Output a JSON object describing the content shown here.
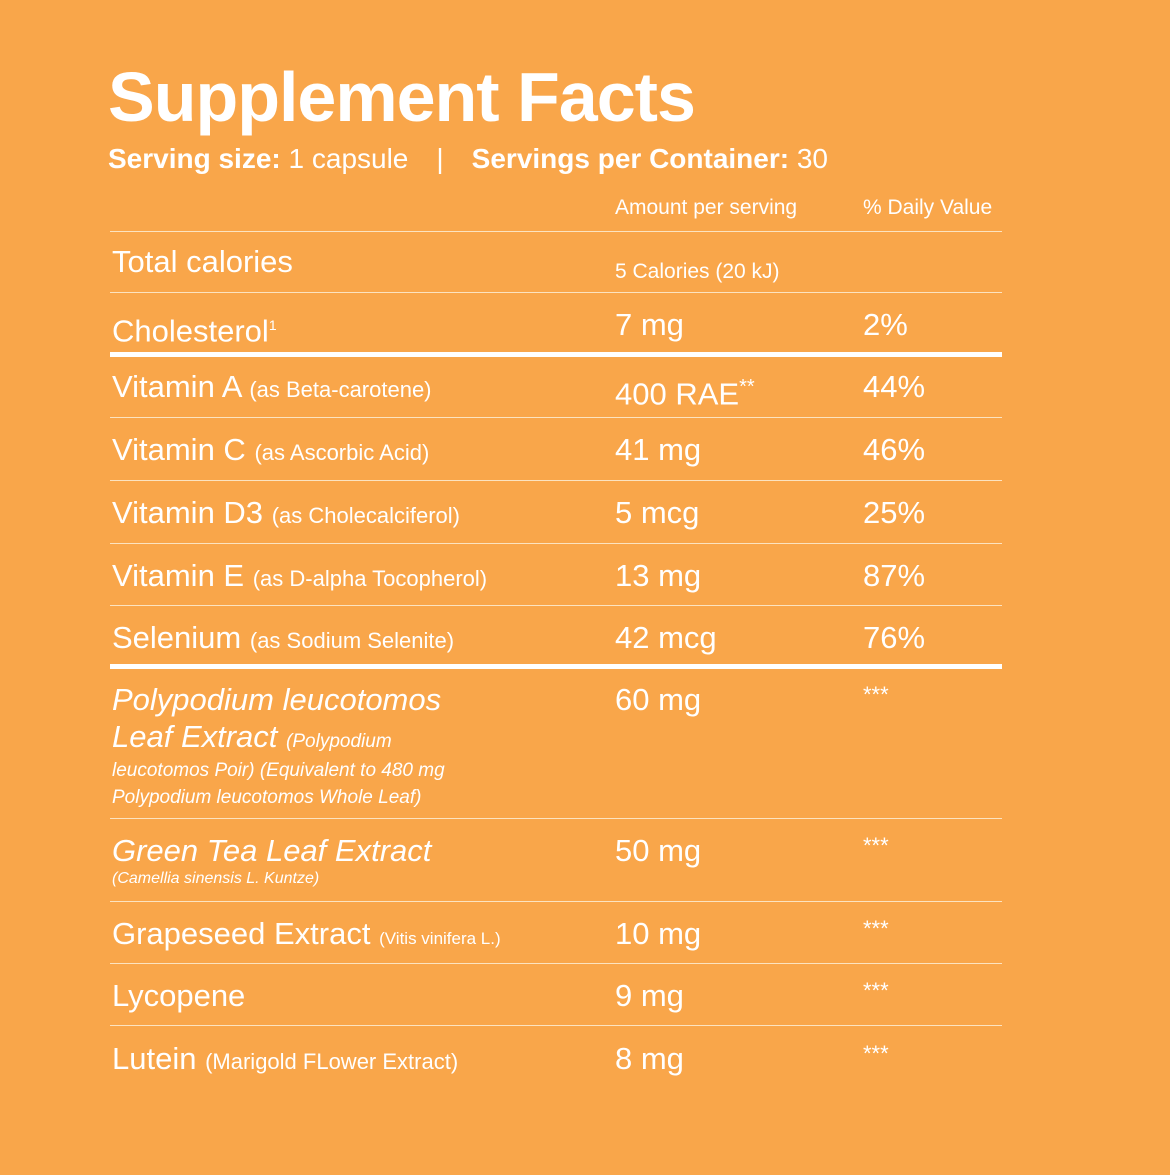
{
  "title": "Supplement Facts",
  "serving": {
    "size_label": "Serving size:",
    "size_value": "1 capsule",
    "separator": "|",
    "per_container_label": "Servings per Container:",
    "per_container_value": "30"
  },
  "columns": {
    "amount": "Amount per serving",
    "dv": "% Daily Value"
  },
  "total_calories": {
    "name": "Total calories",
    "amount": "5 Calories (20 kJ)"
  },
  "cholesterol": {
    "name": "Cholesterol",
    "footnote": "1",
    "amount": "7 mg",
    "dv": "2%"
  },
  "vitamins": [
    {
      "name": "Vitamin A",
      "source": "(as Beta-carotene)",
      "amount": "400 RAE",
      "mark": "**",
      "dv": "44%"
    },
    {
      "name": "Vitamin C",
      "source": "(as Ascorbic Acid)",
      "amount": "41 mg",
      "dv": "46%"
    },
    {
      "name": "Vitamin D3",
      "source": "(as Cholecalciferol)",
      "amount": "5 mcg",
      "dv": "25%"
    },
    {
      "name": "Vitamin E",
      "source": "(as D-alpha Tocopherol)",
      "amount": "13 mg",
      "dv": "87%"
    },
    {
      "name": "Selenium",
      "source": "(as Sodium Selenite)",
      "amount": "42 mcg",
      "dv": "76%"
    }
  ],
  "extracts": [
    {
      "name_line1": "Polypodium leucotomos",
      "name_line2": "Leaf Extract",
      "source_line1": "(Polypodium",
      "source_line2": "leucotomos Poir) (Equivalent to 480 mg",
      "source_line3": "Polypodium leucotomos Whole Leaf)",
      "amount": "60 mg",
      "dv": "***"
    },
    {
      "name": "Green Tea Leaf Extract",
      "source": "(Camellia sinensis L. Kuntze)",
      "amount": "50 mg",
      "dv": "***"
    },
    {
      "name": "Grapeseed Extract",
      "source": "(Vitis vinifera L.)",
      "amount": "10 mg",
      "dv": "***"
    },
    {
      "name": "Lycopene",
      "amount": "9 mg",
      "dv": "***"
    },
    {
      "name": "Lutein",
      "source": "(Marigold FLower Extract)",
      "amount": "8 mg",
      "dv": "***"
    }
  ]
}
